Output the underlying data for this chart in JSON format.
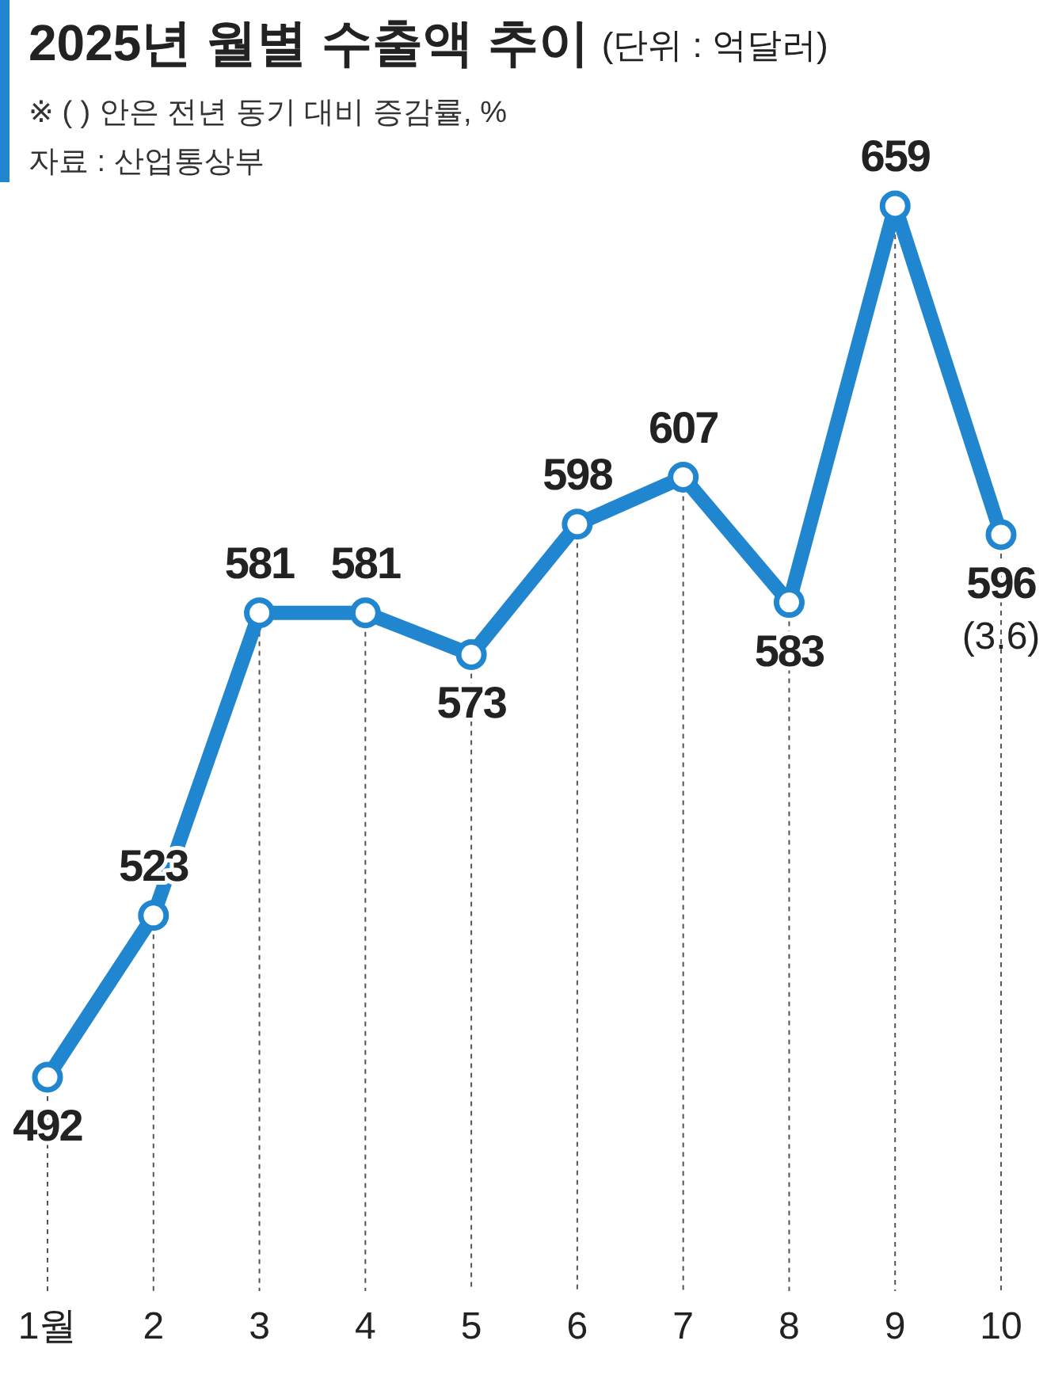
{
  "chart_data": {
    "type": "line",
    "title": "2025년 월별 수출액 추이",
    "subtitle": "(단위 : 억달러)",
    "annotations": [
      "※ (   ) 안은 전년 동기 대비 증감률, %",
      "자료 : 산업통상부",
      {
        "text": "(3.6)",
        "x": "10",
        "y": 596
      }
    ],
    "categories": [
      "1월",
      "2",
      "3",
      "4",
      "5",
      "6",
      "7",
      "8",
      "9",
      "10"
    ],
    "series": [
      {
        "color": "#1f86cf",
        "values": [
          492,
          523,
          581,
          581,
          573,
          598,
          607,
          583,
          659,
          596
        ]
      }
    ],
    "data_labels": true,
    "marker": "circle",
    "line_style": "solid",
    "grid": "x"
  }
}
